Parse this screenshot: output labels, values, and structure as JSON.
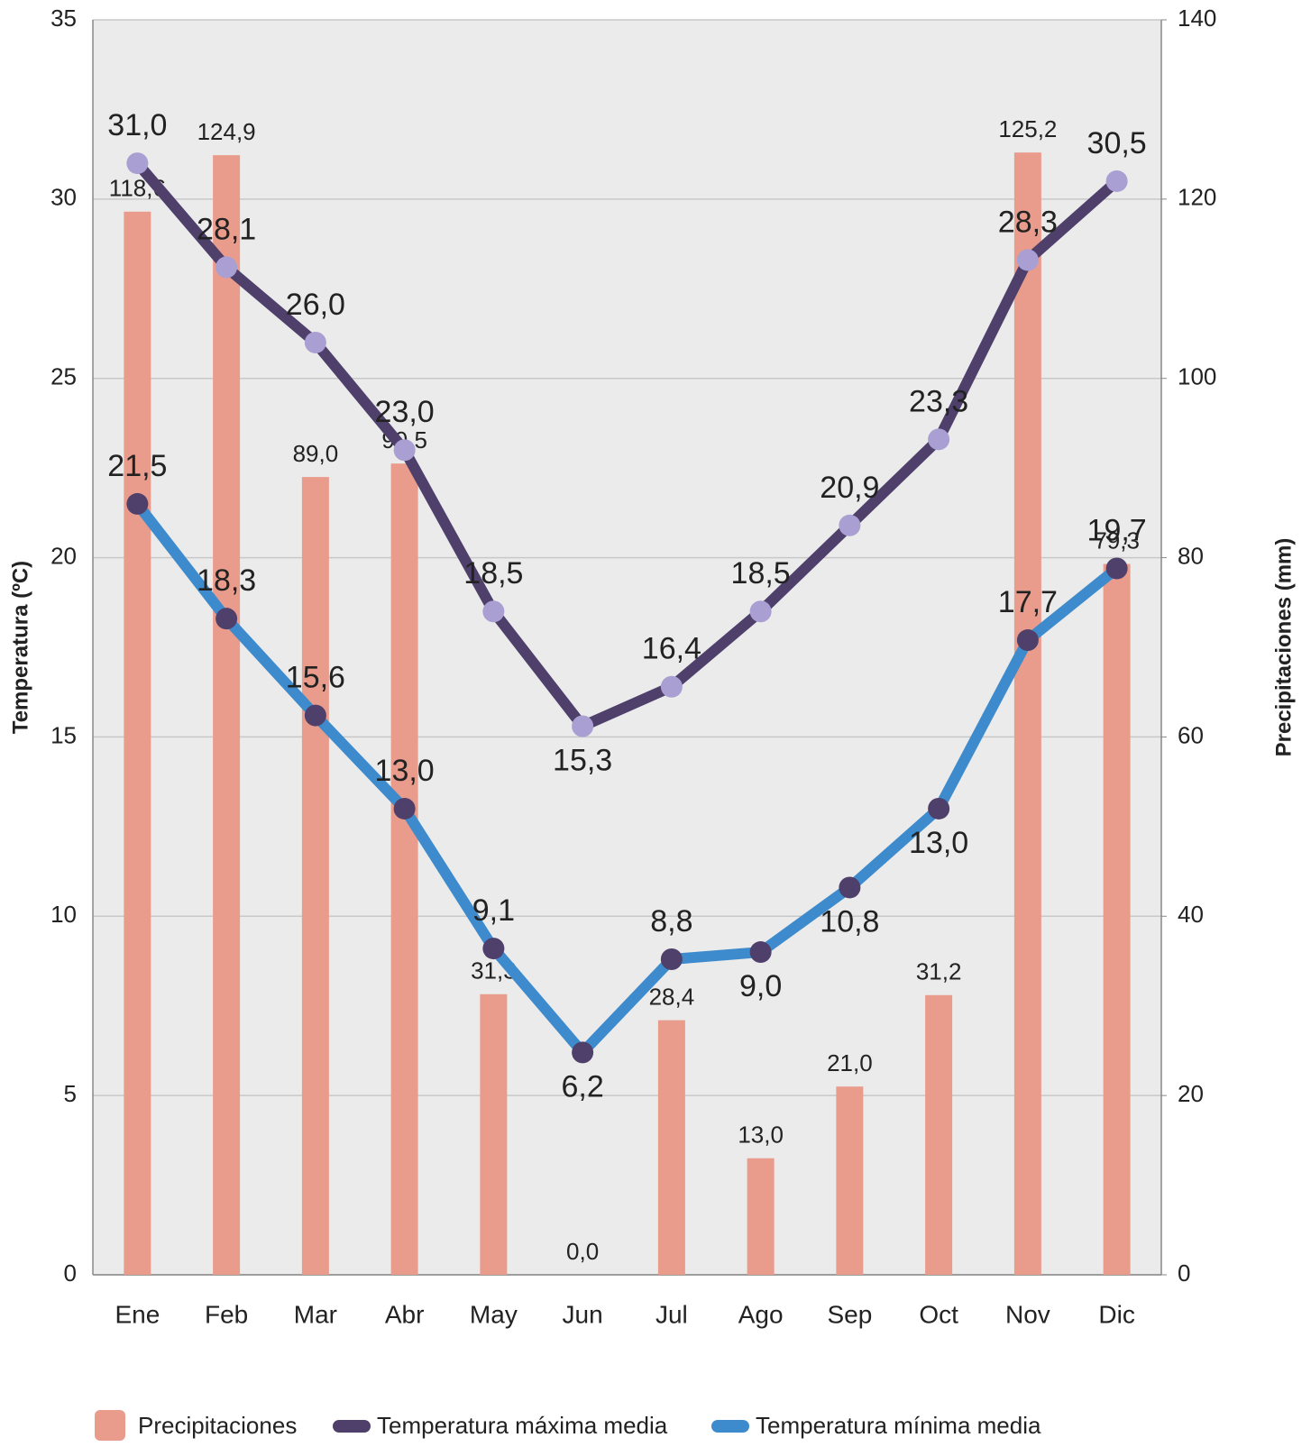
{
  "chart_data": {
    "type": "combo",
    "categories": [
      "Ene",
      "Feb",
      "Mar",
      "Abr",
      "May",
      "Jun",
      "Jul",
      "Ago",
      "Sep",
      "Oct",
      "Nov",
      "Dic"
    ],
    "ylabel": "Temperatura (ºC)",
    "y2label": "Precipitaciones (mm)",
    "ylim": [
      0,
      35
    ],
    "yticks": [
      0,
      5,
      10,
      15,
      20,
      25,
      30,
      35
    ],
    "y2lim": [
      0,
      140
    ],
    "y2ticks": [
      0,
      20,
      40,
      60,
      80,
      100,
      120,
      140
    ],
    "grid": true,
    "legend": "bottom",
    "series": [
      {
        "name": "Precipitaciones",
        "type": "bar",
        "axis": "y2",
        "color": "#e99c8c",
        "label_color": "#eb9c8b",
        "values": [
          118.6,
          124.9,
          89.0,
          90.5,
          31.3,
          0.0,
          28.4,
          13.0,
          21.0,
          31.2,
          125.2,
          79.3
        ],
        "value_labels": [
          "118,6",
          "124,9",
          "89,0",
          "90,5",
          "31,3",
          "0,0",
          "28,4",
          "13,0",
          "21,0",
          "31,2",
          "125,2",
          "79,3"
        ]
      },
      {
        "name": "Temperatura máxima media",
        "type": "line",
        "color": "#4e3f6b",
        "marker_color": "#a99fd2",
        "label_color": "#4e3f6b",
        "values": [
          31.0,
          28.1,
          26.0,
          23.0,
          18.5,
          15.3,
          16.4,
          18.5,
          20.9,
          23.3,
          28.3,
          30.5
        ],
        "value_labels": [
          "31,0",
          "28,1",
          "26,0",
          "23,0",
          "18,5",
          "15,3",
          "16,4",
          "18,5",
          "20,9",
          "23,3",
          "28,3",
          "30,5"
        ]
      },
      {
        "name": "Temperatura mínima media",
        "type": "line",
        "color": "#3d8bcd",
        "marker_color": "#4e3f6b",
        "label_color": "#3a78bb",
        "values": [
          21.5,
          18.3,
          15.6,
          13.0,
          9.1,
          6.2,
          8.8,
          9.0,
          10.8,
          13.0,
          17.7,
          19.7
        ],
        "value_labels": [
          "21,5",
          "18,3",
          "15,6",
          "13,0",
          "9,1",
          "6,2",
          "8,8",
          "9,0",
          "10,8",
          "13,0",
          "17,7",
          "19,7"
        ]
      }
    ]
  }
}
